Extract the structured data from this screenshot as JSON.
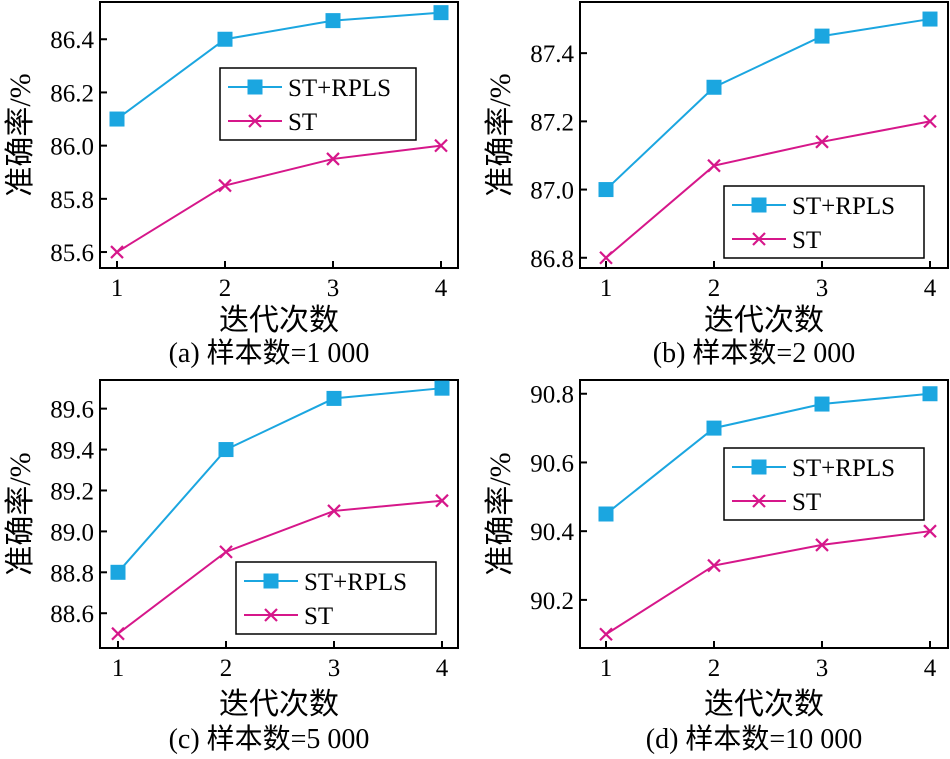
{
  "colors": {
    "st_rpls": "#1ba6e0",
    "st": "#d6178a"
  },
  "chart_data": [
    {
      "type": "line",
      "caption": "(a) 样本数=1 000",
      "xlabel": "迭代次数",
      "ylabel": "准确率/%",
      "x": [
        1,
        2,
        3,
        4
      ],
      "xticks": [
        "1",
        "2",
        "3",
        "4"
      ],
      "ylim": [
        85.54,
        86.54
      ],
      "yticks": [
        "85.6",
        "85.8",
        "86.0",
        "86.2",
        "86.4"
      ],
      "grid": false,
      "legend_position": "center-right",
      "series": [
        {
          "name": "ST+RPLS",
          "marker": "square-icon",
          "values": [
            86.1,
            86.4,
            86.47,
            86.5
          ]
        },
        {
          "name": "ST",
          "marker": "cross-icon",
          "values": [
            85.6,
            85.85,
            85.95,
            86.0
          ]
        }
      ]
    },
    {
      "type": "line",
      "caption": "(b) 样本数=2 000",
      "xlabel": "迭代次数",
      "ylabel": "准确率/%",
      "x": [
        1,
        2,
        3,
        4
      ],
      "xticks": [
        "1",
        "2",
        "3",
        "4"
      ],
      "ylim": [
        86.77,
        87.55
      ],
      "yticks": [
        "86.8",
        "87.0",
        "87.2",
        "87.4"
      ],
      "grid": false,
      "legend_position": "lower-right",
      "series": [
        {
          "name": "ST+RPLS",
          "marker": "square-icon",
          "values": [
            87.0,
            87.3,
            87.45,
            87.5
          ]
        },
        {
          "name": "ST",
          "marker": "cross-icon",
          "values": [
            86.8,
            87.07,
            87.14,
            87.2
          ]
        }
      ]
    },
    {
      "type": "line",
      "caption": "(c) 样本数=5 000",
      "xlabel": "迭代次数",
      "ylabel": "准确率/%",
      "x": [
        1,
        2,
        3,
        4
      ],
      "xticks": [
        "1",
        "2",
        "3",
        "4"
      ],
      "ylim": [
        88.43,
        89.74
      ],
      "yticks": [
        "88.6",
        "88.8",
        "89.0",
        "89.2",
        "89.4",
        "89.6"
      ],
      "grid": false,
      "legend_position": "lower-right",
      "series": [
        {
          "name": "ST+RPLS",
          "marker": "square-icon",
          "values": [
            88.8,
            89.4,
            89.65,
            89.7
          ]
        },
        {
          "name": "ST",
          "marker": "cross-icon",
          "values": [
            88.5,
            88.9,
            89.1,
            89.15
          ]
        }
      ]
    },
    {
      "type": "line",
      "caption": "(d) 样本数=10 000",
      "xlabel": "迭代次数",
      "ylabel": "准确率/%",
      "x": [
        1,
        2,
        3,
        4
      ],
      "xticks": [
        "1",
        "2",
        "3",
        "4"
      ],
      "ylim": [
        90.06,
        90.84
      ],
      "yticks": [
        "90.2",
        "90.4",
        "90.6",
        "90.8"
      ],
      "grid": false,
      "legend_position": "upper-right",
      "series": [
        {
          "name": "ST+RPLS",
          "marker": "square-icon",
          "values": [
            90.45,
            90.7,
            90.77,
            90.8
          ]
        },
        {
          "name": "ST",
          "marker": "cross-icon",
          "values": [
            90.1,
            90.3,
            90.36,
            90.4
          ]
        }
      ]
    }
  ]
}
